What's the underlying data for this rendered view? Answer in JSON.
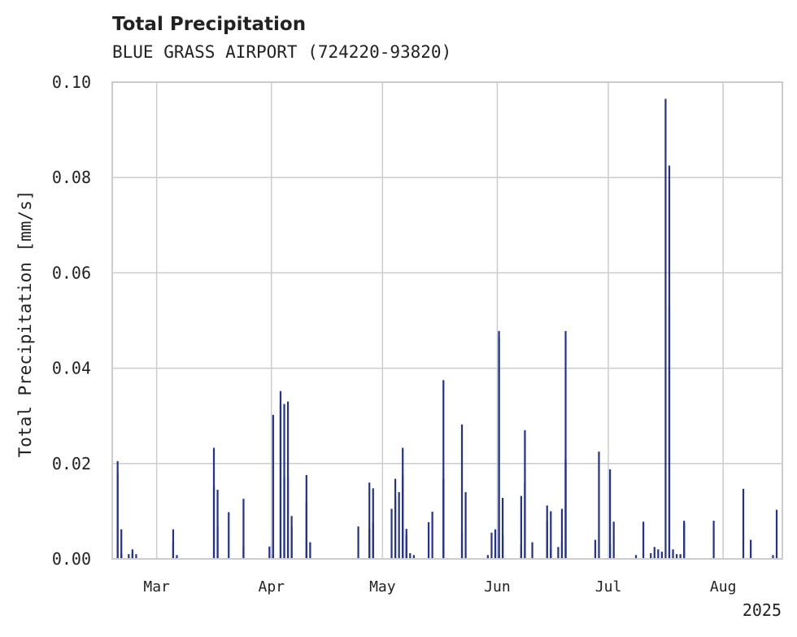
{
  "chart_data": {
    "type": "bar",
    "title": "Total Precipitation",
    "subtitle": "BLUE GRASS AIRPORT (724220-93820)",
    "ylabel": "Total Precipitation [mm/s]",
    "xlabel": "",
    "ylim": [
      0,
      0.1
    ],
    "yticks": [
      "0.00",
      "0.02",
      "0.04",
      "0.06",
      "0.08",
      "0.10"
    ],
    "xlim": [
      "2025-02-17",
      "2025-08-17"
    ],
    "xticks": [
      {
        "date": "2025-03-01",
        "label": "Mar"
      },
      {
        "date": "2025-04-01",
        "label": "Apr"
      },
      {
        "date": "2025-05-01",
        "label": "May"
      },
      {
        "date": "2025-06-01",
        "label": "Jun"
      },
      {
        "date": "2025-07-01",
        "label": "Jul"
      },
      {
        "date": "2025-08-01",
        "label": "Aug"
      }
    ],
    "year_label": "2025",
    "grid": true,
    "color": "#23318f",
    "points": [
      [
        "2025-02-18",
        0.0205
      ],
      [
        "2025-02-18",
        0.018
      ],
      [
        "2025-02-19",
        0.0062
      ],
      [
        "2025-02-19",
        0.001
      ],
      [
        "2025-02-21",
        0.001
      ],
      [
        "2025-02-22",
        0.002
      ],
      [
        "2025-02-22",
        0.0012
      ],
      [
        "2025-02-23",
        0.001
      ],
      [
        "2025-03-05",
        0.0062
      ],
      [
        "2025-03-05",
        0.0035
      ],
      [
        "2025-03-06",
        0.0008
      ],
      [
        "2025-03-16",
        0.0153
      ],
      [
        "2025-03-16",
        0.0233
      ],
      [
        "2025-03-17",
        0.0145
      ],
      [
        "2025-03-17",
        0.0068
      ],
      [
        "2025-03-20",
        0.0098
      ],
      [
        "2025-03-24",
        0.0126
      ],
      [
        "2025-03-24",
        0.0025
      ],
      [
        "2025-03-31",
        0.0026
      ],
      [
        "2025-04-01",
        0.0302
      ],
      [
        "2025-04-01",
        0.0008
      ],
      [
        "2025-04-03",
        0.0352
      ],
      [
        "2025-04-03",
        0.0325
      ],
      [
        "2025-04-04",
        0.0325
      ],
      [
        "2025-04-04",
        0.017
      ],
      [
        "2025-04-05",
        0.017
      ],
      [
        "2025-04-05",
        0.033
      ],
      [
        "2025-04-06",
        0.009
      ],
      [
        "2025-04-06",
        0.0068
      ],
      [
        "2025-04-10",
        0.0176
      ],
      [
        "2025-04-10",
        0.012
      ],
      [
        "2025-04-11",
        0.0035
      ],
      [
        "2025-04-24",
        0.0068
      ],
      [
        "2025-04-27",
        0.0063
      ],
      [
        "2025-04-27",
        0.016
      ],
      [
        "2025-04-28",
        0.0148
      ],
      [
        "2025-04-28",
        0.0075
      ],
      [
        "2025-05-03",
        0.0105
      ],
      [
        "2025-05-04",
        0.013
      ],
      [
        "2025-05-04",
        0.0168
      ],
      [
        "2025-05-05",
        0.014
      ],
      [
        "2025-05-06",
        0.0175
      ],
      [
        "2025-05-06",
        0.0233
      ],
      [
        "2025-05-07",
        0.0063
      ],
      [
        "2025-05-07",
        0.005
      ],
      [
        "2025-05-08",
        0.0012
      ],
      [
        "2025-05-09",
        0.0008
      ],
      [
        "2025-05-13",
        0.0077
      ],
      [
        "2025-05-14",
        0.0099
      ],
      [
        "2025-05-17",
        0.0375
      ],
      [
        "2025-05-17",
        0.0168
      ],
      [
        "2025-05-22",
        0.0055
      ],
      [
        "2025-05-22",
        0.0282
      ],
      [
        "2025-05-23",
        0.014
      ],
      [
        "2025-05-29",
        0.0008
      ],
      [
        "2025-05-30",
        0.0055
      ],
      [
        "2025-05-31",
        0.0062
      ],
      [
        "2025-06-01",
        0.001
      ],
      [
        "2025-06-01",
        0.0478
      ],
      [
        "2025-06-01",
        0.0465
      ],
      [
        "2025-06-02",
        0.0128
      ],
      [
        "2025-06-02",
        0.005
      ],
      [
        "2025-06-07",
        0.0132
      ],
      [
        "2025-06-07",
        0.003
      ],
      [
        "2025-06-08",
        0.027
      ],
      [
        "2025-06-08",
        0.016
      ],
      [
        "2025-06-10",
        0.0035
      ],
      [
        "2025-06-14",
        0.0112
      ],
      [
        "2025-06-14",
        0.008
      ],
      [
        "2025-06-15",
        0.01
      ],
      [
        "2025-06-15",
        0.002
      ],
      [
        "2025-06-17",
        0.0025
      ],
      [
        "2025-06-18",
        0.0035
      ],
      [
        "2025-06-18",
        0.0105
      ],
      [
        "2025-06-19",
        0.021
      ],
      [
        "2025-06-19",
        0.0478
      ],
      [
        "2025-06-19",
        0.0205
      ],
      [
        "2025-06-27",
        0.004
      ],
      [
        "2025-06-28",
        0.0225
      ],
      [
        "2025-07-01",
        0.003
      ],
      [
        "2025-07-01",
        0.0188
      ],
      [
        "2025-07-02",
        0.0078
      ],
      [
        "2025-07-08",
        0.0008
      ],
      [
        "2025-07-10",
        0.0078
      ],
      [
        "2025-07-12",
        0.0012
      ],
      [
        "2025-07-13",
        0.0025
      ],
      [
        "2025-07-14",
        0.002
      ],
      [
        "2025-07-15",
        0.0015
      ],
      [
        "2025-07-16",
        0.0965
      ],
      [
        "2025-07-17",
        0.053
      ],
      [
        "2025-07-17",
        0.0825
      ],
      [
        "2025-07-18",
        0.002
      ],
      [
        "2025-07-19",
        0.001
      ],
      [
        "2025-07-20",
        0.001
      ],
      [
        "2025-07-21",
        0.008
      ],
      [
        "2025-07-21",
        0.0075
      ],
      [
        "2025-07-29",
        0.008
      ],
      [
        "2025-08-06",
        0.0147
      ],
      [
        "2025-08-08",
        0.004
      ],
      [
        "2025-08-14",
        0.0008
      ],
      [
        "2025-08-15",
        0.0103
      ]
    ]
  }
}
